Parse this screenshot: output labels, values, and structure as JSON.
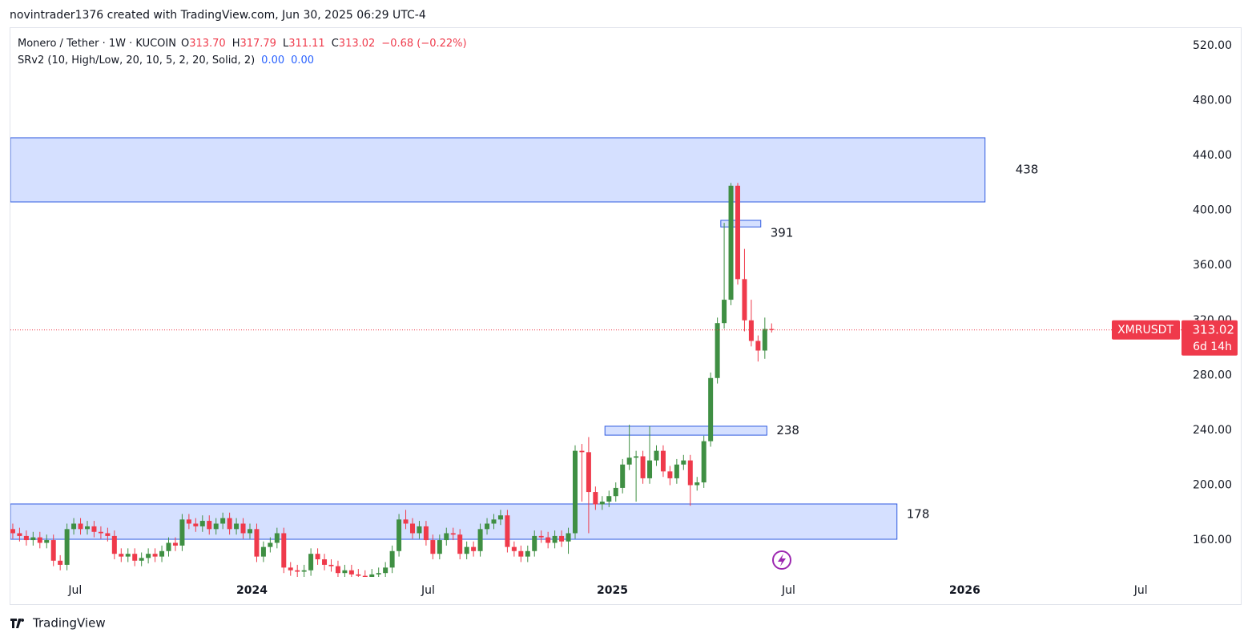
{
  "header": {
    "attribution": "novintrader1376 created with TradingView.com, Jun 30, 2025 06:29 UTC-4"
  },
  "legend": {
    "symbol": "Monero / Tether · 1W · KUCOIN",
    "ohlc": [
      {
        "key": "O",
        "value": "313.70"
      },
      {
        "key": "H",
        "value": "317.79"
      },
      {
        "key": "L",
        "value": "311.11"
      },
      {
        "key": "C",
        "value": "313.02"
      }
    ],
    "change": "−0.68 (−0.22%)",
    "indicator": "SRv2 (10, High/Low, 20, 10, 5, 2, 20, Solid, 2)",
    "indicator_values": [
      "0.00",
      "0.00"
    ]
  },
  "price_tag": {
    "symbol": "XMRUSDT",
    "countdown": "6d 14h"
  },
  "footer": {
    "brand": "TradingView"
  },
  "chart_data": {
    "type": "candlestick",
    "up_color": "#3f8f43",
    "down_color": "#ef3a4b",
    "xlim": [
      -0.35,
      172.5
    ],
    "ylim": [
      133.2,
      532.8
    ],
    "xticks": [
      {
        "value": 9.2,
        "label": "Jul"
      },
      {
        "value": 35.3,
        "label": "2024"
      },
      {
        "value": 61.3,
        "label": "Jul"
      },
      {
        "value": 88.5,
        "label": "2025"
      },
      {
        "value": 114.5,
        "label": "Jul"
      },
      {
        "value": 140.5,
        "label": "2026"
      },
      {
        "value": 166.5,
        "label": "Jul"
      }
    ],
    "yticks": [
      {
        "value": 160,
        "label": "160.00"
      },
      {
        "value": 200,
        "label": "200.00"
      },
      {
        "value": 240,
        "label": "240.00"
      },
      {
        "value": 280,
        "label": "280.00"
      },
      {
        "value": 320,
        "label": "320.00"
      },
      {
        "value": 360,
        "label": "360.00"
      },
      {
        "value": 400,
        "label": "400.00"
      },
      {
        "value": 440,
        "label": "440.00"
      },
      {
        "value": 480,
        "label": "480.00"
      },
      {
        "value": 520,
        "label": "520.00"
      }
    ],
    "open": [
      168,
      165,
      163,
      160,
      162,
      158,
      160,
      145,
      142,
      168,
      172,
      168,
      170,
      166,
      165,
      163,
      150,
      148,
      150,
      145,
      147,
      150,
      148,
      152,
      158,
      156,
      175,
      172,
      170,
      174,
      168,
      172,
      176,
      168,
      172,
      165,
      168,
      148,
      155,
      158,
      165,
      140,
      138,
      137,
      138,
      150,
      146,
      142,
      141,
      136,
      138,
      135,
      134,
      133,
      135,
      136,
      140,
      152,
      175,
      172,
      165,
      170,
      160,
      150,
      160,
      165,
      164,
      150,
      155,
      152,
      168,
      172,
      175,
      178,
      155,
      152,
      148,
      152,
      163,
      162,
      158,
      163,
      159,
      165,
      225,
      224,
      195,
      186,
      188,
      192,
      198,
      215,
      220,
      221,
      205,
      218,
      225,
      210,
      205,
      215,
      218,
      200,
      202,
      232,
      278,
      318,
      335,
      418,
      350,
      320,
      305,
      298,
      313.7
    ],
    "high": [
      172,
      169,
      167,
      166,
      166,
      164,
      164,
      149,
      172,
      176,
      176,
      174,
      174,
      170,
      169,
      167,
      154,
      154,
      154,
      151,
      154,
      154,
      156,
      162,
      162,
      179,
      179,
      176,
      178,
      178,
      176,
      180,
      180,
      176,
      176,
      172,
      172,
      159,
      162,
      169,
      169,
      144,
      142,
      142,
      154,
      154,
      150,
      146,
      145,
      142,
      142,
      139,
      138,
      139,
      140,
      144,
      156,
      179,
      182,
      176,
      174,
      174,
      164,
      164,
      169,
      169,
      168,
      159,
      159,
      172,
      176,
      179,
      182,
      182,
      159,
      156,
      156,
      167,
      167,
      166,
      167,
      167,
      169,
      229,
      230,
      235,
      199,
      192,
      196,
      202,
      219,
      244,
      225,
      225,
      243,
      229,
      229,
      214,
      219,
      222,
      222,
      206,
      236,
      282,
      322,
      391,
      420,
      420,
      372,
      335,
      309,
      322,
      317.79
    ],
    "low": [
      161,
      159,
      156,
      156,
      154,
      154,
      141,
      138,
      138,
      164,
      164,
      164,
      162,
      161,
      159,
      146,
      144,
      144,
      141,
      141,
      143,
      144,
      144,
      148,
      152,
      152,
      168,
      166,
      166,
      164,
      164,
      168,
      164,
      164,
      161,
      161,
      144,
      144,
      151,
      154,
      136,
      134,
      133,
      133,
      134,
      142,
      138,
      137,
      132,
      132,
      131,
      130,
      129,
      129,
      131,
      132,
      136,
      148,
      168,
      161,
      161,
      156,
      146,
      146,
      156,
      160,
      146,
      146,
      148,
      148,
      164,
      168,
      171,
      151,
      148,
      144,
      144,
      148,
      158,
      154,
      154,
      155,
      150,
      161,
      188,
      165,
      182,
      182,
      184,
      188,
      194,
      211,
      188,
      201,
      201,
      214,
      206,
      200,
      201,
      211,
      185,
      196,
      198,
      228,
      274,
      314,
      331,
      346,
      312,
      301,
      290,
      292,
      311.11
    ],
    "close": [
      165,
      163,
      160,
      162,
      158,
      160,
      145,
      142,
      168,
      172,
      168,
      170,
      166,
      165,
      163,
      150,
      148,
      150,
      145,
      147,
      150,
      148,
      152,
      158,
      156,
      175,
      172,
      170,
      174,
      168,
      172,
      176,
      168,
      172,
      165,
      168,
      148,
      155,
      158,
      165,
      140,
      138,
      137,
      138,
      150,
      146,
      142,
      141,
      136,
      138,
      135,
      134,
      133,
      135,
      136,
      140,
      152,
      175,
      172,
      165,
      170,
      160,
      150,
      160,
      165,
      164,
      150,
      155,
      152,
      168,
      172,
      175,
      178,
      155,
      152,
      148,
      152,
      163,
      162,
      158,
      163,
      159,
      165,
      225,
      224,
      195,
      186,
      188,
      192,
      198,
      215,
      220,
      221,
      205,
      218,
      225,
      210,
      205,
      215,
      218,
      200,
      202,
      232,
      278,
      318,
      335,
      418,
      350,
      320,
      305,
      298,
      313.7,
      313.02
    ],
    "zones": [
      {
        "label": 438,
        "top": 452.9,
        "bottom": 406.2,
        "x0": -0.35,
        "x1": 143.5
      },
      {
        "label": 391,
        "top": 392.8,
        "bottom": 388,
        "x0": 104.5,
        "x1": 110.4
      },
      {
        "label": 238,
        "top": 242.9,
        "bottom": 236.4,
        "x0": 87.4,
        "x1": 111.3
      },
      {
        "label": 178,
        "top": 186.3,
        "bottom": 160.6,
        "x0": -0.35,
        "x1": 130.5
      }
    ],
    "zone_color": "#d5e0ff",
    "zone_stroke": "#2f5be0"
  }
}
